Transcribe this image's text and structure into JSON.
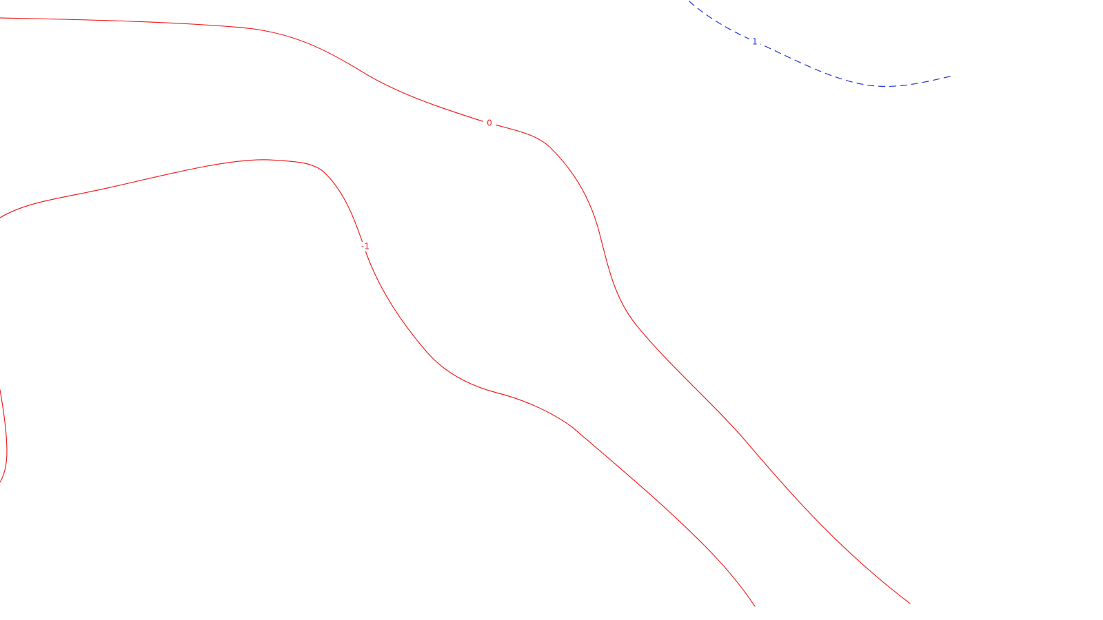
{
  "contours": [
    {
      "id": "upper-red",
      "level_label": "0",
      "color": "#ee2222",
      "style": "solid"
    },
    {
      "id": "lower-red",
      "level_label": "-1",
      "color": "#ee2222",
      "style": "solid"
    },
    {
      "id": "left-edge-red",
      "level_label": "",
      "color": "#ee2222",
      "style": "solid"
    },
    {
      "id": "blue-dashed",
      "level_label": "1",
      "color": "#2233dd",
      "style": "dashed"
    }
  ]
}
